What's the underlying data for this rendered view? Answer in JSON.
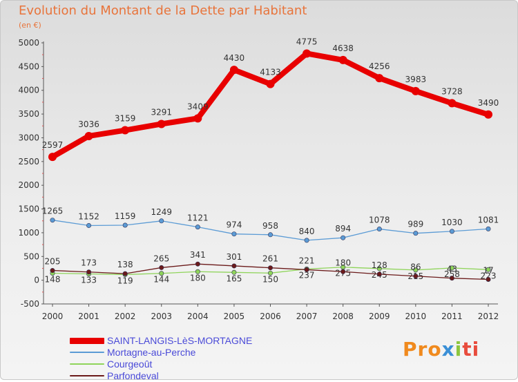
{
  "chart_data": {
    "type": "line",
    "title": "Evolution du Montant de la Dette par Habitant",
    "subtitle": "(en €)",
    "xlabel": "",
    "ylabel": "",
    "x": [
      "2000",
      "2001",
      "2002",
      "2003",
      "2004",
      "2005",
      "2006",
      "2007",
      "2008",
      "2009",
      "2010",
      "2011",
      "2012"
    ],
    "ylim": [
      -500,
      5000
    ],
    "yticks": [
      -500,
      0,
      500,
      1000,
      1500,
      2000,
      2500,
      3000,
      3500,
      4000,
      4500,
      5000
    ],
    "grid": false,
    "legend_position": "bottom-left",
    "series": [
      {
        "name": "SAINT-LANGIS-LèS-MORTAGNE",
        "color": "#e80000",
        "values": [
          2597,
          3036,
          3159,
          3291,
          3409,
          4430,
          4133,
          4775,
          4638,
          4256,
          3983,
          3728,
          3490
        ]
      },
      {
        "name": "Mortagne-au-Perche",
        "color": "#5b9bd5",
        "values": [
          1265,
          1152,
          1159,
          1249,
          1121,
          974,
          958,
          840,
          894,
          1078,
          989,
          1030,
          1081
        ]
      },
      {
        "name": "Courgeoût",
        "color": "#8fd45a",
        "values": [
          148,
          133,
          119,
          144,
          180,
          165,
          150,
          237,
          275,
          245,
          215,
          258,
          223
        ]
      },
      {
        "name": "Parfondeval",
        "color": "#6b1a1a",
        "values": [
          205,
          173,
          138,
          265,
          341,
          301,
          261,
          221,
          180,
          128,
          86,
          43,
          17
        ]
      }
    ]
  },
  "logo": {
    "parts": [
      "Pro",
      "x",
      "i",
      "ti"
    ]
  }
}
